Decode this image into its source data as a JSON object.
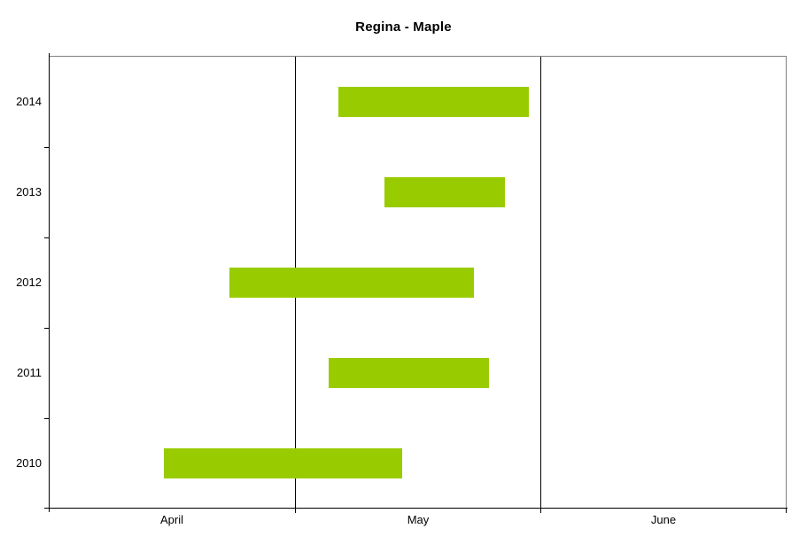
{
  "title": "Regina - Maple",
  "colors": {
    "bar_fill": "#99CC00",
    "axis": "#000000",
    "plot_border": "#808080",
    "background": "#FFFFFF",
    "text": "#000000"
  },
  "chart_data": {
    "type": "gantt",
    "orientation": "horizontal-bars",
    "title": "Regina - Maple",
    "categories": [
      "2014",
      "2013",
      "2012",
      "2011",
      "2010"
    ],
    "x_axis": {
      "unit": "date",
      "range_start": "April 1",
      "range_end": "June 30",
      "tick_labels": [
        "April",
        "May",
        "June"
      ],
      "months": [
        {
          "label": "April",
          "days": 30
        },
        {
          "label": "May",
          "days": 31
        },
        {
          "label": "June",
          "days": 30
        }
      ]
    },
    "series": [
      {
        "category": "2014",
        "start_date": "May 6",
        "end_date": "May 30",
        "start_day_from_apr1": 35.5,
        "end_day_from_apr1": 59.5
      },
      {
        "category": "2013",
        "start_date": "May 12",
        "end_date": "May 27",
        "start_day_from_apr1": 41.3,
        "end_day_from_apr1": 56.5
      },
      {
        "category": "2012",
        "start_date": "April 23",
        "end_date": "May 23",
        "start_day_from_apr1": 22.0,
        "end_day_from_apr1": 52.5
      },
      {
        "category": "2011",
        "start_date": "May 5",
        "end_date": "May 25",
        "start_day_from_apr1": 34.3,
        "end_day_from_apr1": 54.5
      },
      {
        "category": "2010",
        "start_date": "April 15",
        "end_date": "May 14",
        "start_day_from_apr1": 14.0,
        "end_day_from_apr1": 43.5
      }
    ],
    "legend": false,
    "grid": "vertical-lines-at-month-boundaries"
  }
}
